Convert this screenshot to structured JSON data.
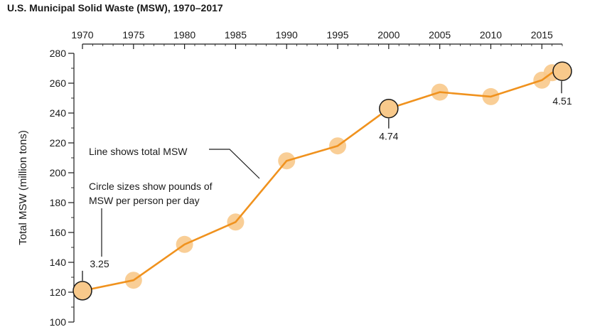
{
  "chart_data": {
    "type": "line",
    "title": "U.S. Municipal Solid Waste (MSW), 1970–2017",
    "xlabel": "",
    "ylabel": "Total MSW (million tons)",
    "xlim": [
      1970,
      2017
    ],
    "ylim": [
      100,
      280
    ],
    "x_ticks": [
      1970,
      1975,
      1980,
      1985,
      1990,
      1995,
      2000,
      2005,
      2010,
      2015
    ],
    "x_ticks_position": "top",
    "y_ticks": [
      100,
      120,
      140,
      160,
      180,
      200,
      220,
      240,
      260,
      280
    ],
    "grid": false,
    "series": [
      {
        "x": [
          1970,
          1975,
          1980,
          1985,
          1990,
          1995,
          2000,
          2005,
          2010,
          2015,
          2016,
          2017
        ],
        "y": [
          121,
          128,
          152,
          167,
          208,
          218,
          243,
          254,
          251,
          262,
          267,
          268
        ],
        "lbs_per_person_per_day": [
          3.25,
          null,
          null,
          null,
          null,
          null,
          4.74,
          null,
          null,
          null,
          null,
          4.51
        ]
      }
    ],
    "highlighted_points": [
      {
        "x": 1970,
        "y": 121,
        "label": "3.25"
      },
      {
        "x": 2000,
        "y": 243,
        "label": "4.74"
      },
      {
        "x": 2017,
        "y": 268,
        "label": "4.51"
      }
    ],
    "annotations": [
      {
        "text": "Line shows total MSW",
        "points_to": "line"
      },
      {
        "text_lines": [
          "Circle sizes show pounds of",
          "MSW per person per day"
        ],
        "points_to": "1970 circle"
      }
    ],
    "colors": {
      "line": "#f0921e",
      "circle": "#f8c98b",
      "outline": "#1a1a1a"
    }
  }
}
